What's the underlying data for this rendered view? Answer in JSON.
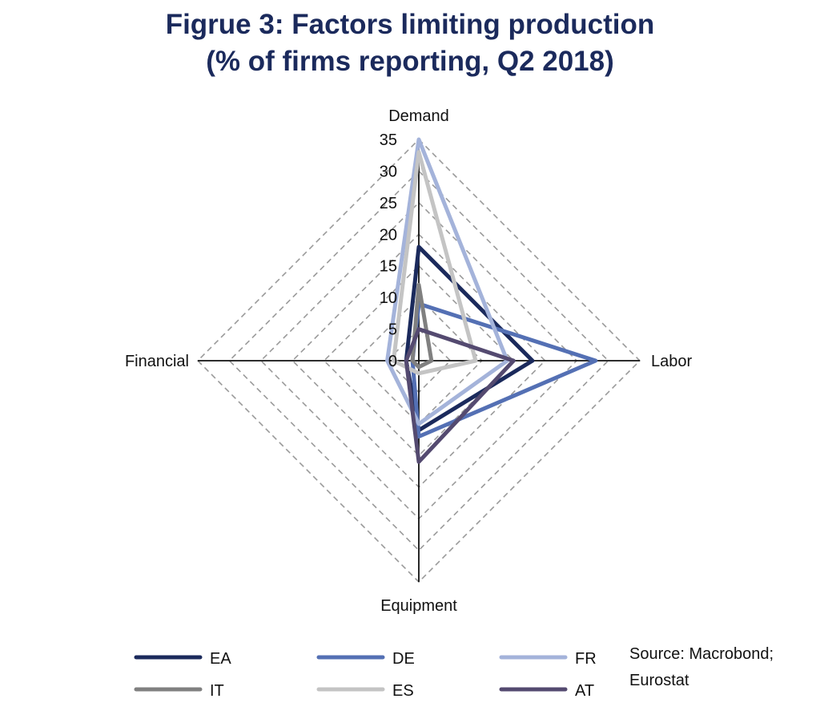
{
  "title_line1": "Figrue 3: Factors limiting production",
  "title_line2": "(% of firms reporting, Q2 2018)",
  "source_line1": "Source: Macrobond;",
  "source_line2": "Eurostat",
  "chart_data": {
    "type": "radar",
    "categories": [
      "Demand",
      "Labor",
      "Equipment",
      "Financial"
    ],
    "rmax": 35,
    "ticks": [
      0,
      5,
      10,
      15,
      20,
      25,
      30,
      35
    ],
    "tick_labels": [
      "0",
      "5",
      "10",
      "15",
      "20",
      "25",
      "30",
      "35"
    ],
    "grid": true,
    "legend_position": "bottom",
    "series": [
      {
        "name": "EA",
        "color": "#1b2a5c",
        "values": [
          18,
          18,
          11,
          2
        ]
      },
      {
        "name": "DE",
        "color": "#5470b4",
        "values": [
          9,
          28,
          12,
          1
        ]
      },
      {
        "name": "FR",
        "color": "#a4b3da",
        "values": [
          35,
          14,
          10,
          5
        ]
      },
      {
        "name": "IT",
        "color": "#808080",
        "values": [
          12,
          2,
          1,
          1
        ]
      },
      {
        "name": "ES",
        "color": "#c4c4c4",
        "values": [
          33,
          9,
          2,
          4
        ]
      },
      {
        "name": "AT",
        "color": "#544a70",
        "values": [
          5,
          15,
          16,
          2
        ]
      }
    ]
  }
}
